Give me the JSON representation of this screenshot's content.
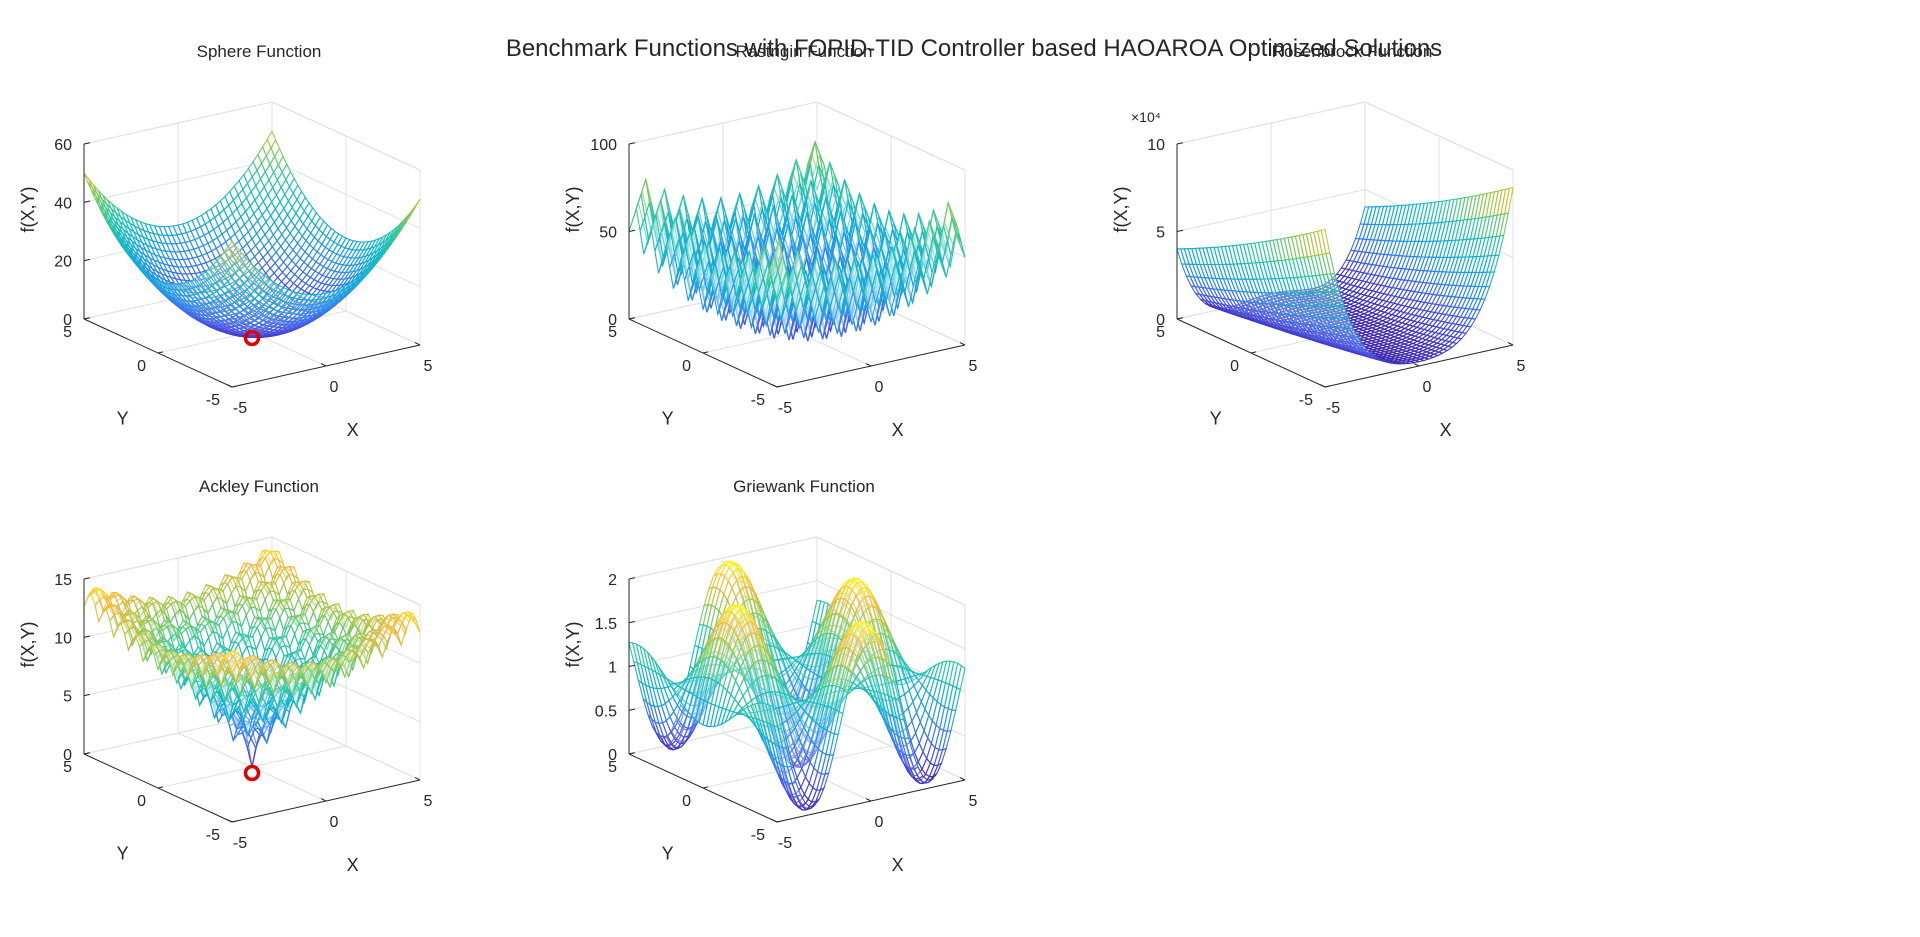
{
  "figure_title": "Benchmark Functions with FOPID-TID Controller based HAOAROA Optimized Solutions",
  "colors": {
    "marker": "#e00000",
    "axis": "#262626",
    "grid": "#e0e0e0",
    "colormap": "parula"
  },
  "chart_data": [
    {
      "type": "surface",
      "function": "sphere",
      "title": "Sphere Function",
      "xlabel": "X",
      "ylabel": "Y",
      "zlabel": "f(X,Y)",
      "xlim": [
        -5,
        5
      ],
      "ylim": [
        -5,
        5
      ],
      "zlim": [
        0,
        60
      ],
      "xticks": [
        "-5",
        "0",
        "5"
      ],
      "yticks": [
        "-5",
        "0",
        "5"
      ],
      "zticks": [
        "0",
        "20",
        "40",
        "60"
      ],
      "z_exponent": "",
      "optimum": {
        "x": 0,
        "y": 0,
        "z": 0
      }
    },
    {
      "type": "surface",
      "function": "rastrigin",
      "title": "Rastrigin Function",
      "xlabel": "X",
      "ylabel": "Y",
      "zlabel": "f(X,Y)",
      "xlim": [
        -5,
        5
      ],
      "ylim": [
        -5,
        5
      ],
      "zlim": [
        0,
        100
      ],
      "xticks": [
        "-5",
        "0",
        "5"
      ],
      "yticks": [
        "-5",
        "0",
        "5"
      ],
      "zticks": [
        "0",
        "50",
        "100"
      ],
      "z_exponent": "",
      "optimum": null
    },
    {
      "type": "surface",
      "function": "rosenbrock",
      "title": "Rosenbrock Function",
      "xlabel": "X",
      "ylabel": "Y",
      "zlabel": "f(X,Y)",
      "xlim": [
        -5,
        5
      ],
      "ylim": [
        -5,
        5
      ],
      "zlim": [
        0,
        10
      ],
      "xticks": [
        "-5",
        "0",
        "5"
      ],
      "yticks": [
        "-5",
        "0",
        "5"
      ],
      "zticks": [
        "0",
        "5",
        "10"
      ],
      "z_exponent": "×10⁴",
      "optimum": null
    },
    {
      "type": "surface",
      "function": "ackley",
      "title": "Ackley Function",
      "xlabel": "X",
      "ylabel": "Y",
      "zlabel": "f(X,Y)",
      "xlim": [
        -5,
        5
      ],
      "ylim": [
        -5,
        5
      ],
      "zlim": [
        0,
        15
      ],
      "xticks": [
        "-5",
        "0",
        "5"
      ],
      "yticks": [
        "-5",
        "0",
        "5"
      ],
      "zticks": [
        "0",
        "5",
        "10",
        "15"
      ],
      "z_exponent": "",
      "optimum": {
        "x": 0,
        "y": 0,
        "z": 0
      }
    },
    {
      "type": "surface",
      "function": "griewank",
      "title": "Griewank Function",
      "xlabel": "X",
      "ylabel": "Y",
      "zlabel": "f(X,Y)",
      "xlim": [
        -5,
        5
      ],
      "ylim": [
        -5,
        5
      ],
      "zlim": [
        0,
        2
      ],
      "xticks": [
        "-5",
        "0",
        "5"
      ],
      "yticks": [
        "-5",
        "0",
        "5"
      ],
      "zticks": [
        "0",
        "0.5",
        "1",
        "1.5",
        "2"
      ],
      "z_exponent": "",
      "optimum": null
    }
  ]
}
